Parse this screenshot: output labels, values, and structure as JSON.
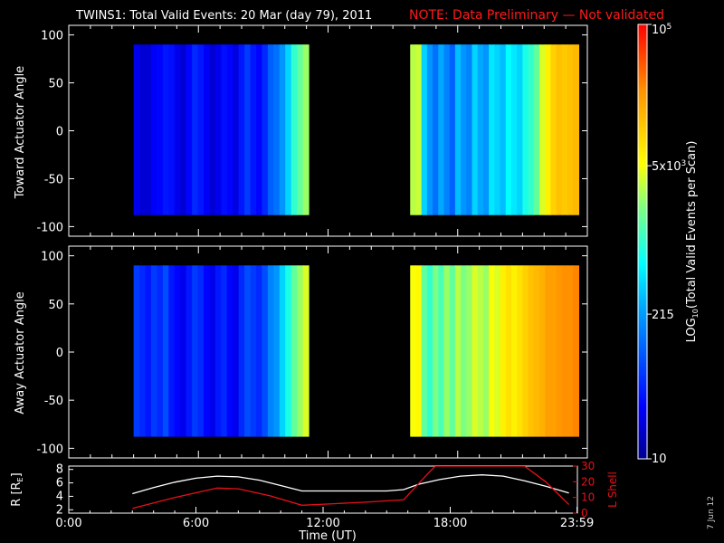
{
  "header": {
    "title": "TWINS1: Total Valid Events: 20 Mar (day  79), 2011",
    "note": "NOTE: Data Preliminary — Not validated"
  },
  "colors": {
    "background": "#000000",
    "note": "#ff1a1a",
    "r_line": "#ffffff",
    "lshell_line": "#e8101a",
    "panel_frame": "#ffffff"
  },
  "colorbar": {
    "label": "LOG10(Total Valid Events per Scan)",
    "label_main": "LOG",
    "label_sub": "10",
    "label_rest": "(Total Valid Events per Scan)",
    "colormap": "jet-like (dark blue → blue → cyan → green → yellow → orange → red)",
    "scale": "log",
    "ticks": [
      {
        "value": 10,
        "label": "10"
      },
      {
        "value": 215,
        "label": "215"
      },
      {
        "value": 5000,
        "label": "5x10",
        "exp": "3"
      },
      {
        "value": 100000,
        "label": "10",
        "exp": "5"
      }
    ],
    "range": [
      10,
      100000
    ]
  },
  "chart_data": [
    {
      "type": "heatmap",
      "ylabel": "Toward Actuator Angle",
      "ylim": [
        -110,
        110
      ],
      "yticks": [
        100,
        50,
        0,
        -50,
        -100
      ],
      "x_unit": "hours UT",
      "data_segments": [
        {
          "start_hour": 3.0,
          "end_hour": 11.1,
          "ymin": -88,
          "ymax": 90
        },
        {
          "start_hour": 15.8,
          "end_hour": 23.6,
          "ymin": -88,
          "ymax": 90
        }
      ],
      "column_level_log10": [
        1.4,
        1.3,
        1.3,
        1.45,
        1.5,
        1.6,
        1.55,
        1.4,
        1.3,
        1.5,
        1.7,
        1.6,
        1.45,
        1.3,
        1.4,
        1.55,
        1.5,
        1.35,
        1.6,
        1.8,
        1.6,
        1.5,
        1.7,
        2.0,
        2.1,
        2.3,
        2.6,
        3.0,
        3.2,
        3.4,
        3.5,
        3.55,
        2.6,
        2.3,
        2.1,
        2.4,
        2.2,
        2.0,
        2.5,
        2.3,
        2.2,
        2.6,
        2.4,
        2.3,
        2.7,
        2.6,
        2.5,
        2.8,
        2.7,
        2.6,
        2.9,
        3.0,
        3.2,
        3.6,
        3.8,
        4.0,
        4.1,
        4.05,
        4.1,
        4.15
      ]
    },
    {
      "type": "heatmap",
      "ylabel": "Away Actuator Angle",
      "ylim": [
        -110,
        110
      ],
      "yticks": [
        100,
        50,
        0,
        -50,
        -100
      ],
      "x_unit": "hours UT",
      "data_segments": [
        {
          "start_hour": 3.0,
          "end_hour": 11.1,
          "ymin": -88,
          "ymax": 90
        },
        {
          "start_hour": 15.8,
          "end_hour": 23.6,
          "ymin": -88,
          "ymax": 90
        }
      ],
      "column_level_log10": [
        1.8,
        1.7,
        1.6,
        1.8,
        1.7,
        1.9,
        1.6,
        1.5,
        1.4,
        1.6,
        1.8,
        1.7,
        1.5,
        1.4,
        1.6,
        1.7,
        1.5,
        1.4,
        1.7,
        1.9,
        1.8,
        1.7,
        1.9,
        2.2,
        2.3,
        2.6,
        2.9,
        3.2,
        3.4,
        3.6,
        3.7,
        3.75,
        3.2,
        3.0,
        3.3,
        3.1,
        3.4,
        3.2,
        3.5,
        3.3,
        3.4,
        3.6,
        3.5,
        3.4,
        3.7,
        3.6,
        3.8,
        3.9,
        3.8,
        3.9,
        4.0,
        4.1,
        4.15,
        4.2,
        4.3,
        4.3,
        4.35,
        4.4,
        4.4,
        4.45
      ]
    },
    {
      "type": "line",
      "ylabel_left": "R [RE]",
      "ylabel_right": "L Shell",
      "xlabel": "Time (UT)",
      "xlim": [
        0,
        24
      ],
      "xticks": [
        {
          "hour": 0,
          "label": "0:00"
        },
        {
          "hour": 6,
          "label": "6:00"
        },
        {
          "hour": 12,
          "label": "12:00"
        },
        {
          "hour": 18,
          "label": "18:00"
        },
        {
          "hour": 23.983,
          "label": "23:59"
        }
      ],
      "ylim_left": [
        1.5,
        8.5
      ],
      "yticks_left": [
        2,
        4,
        6,
        8
      ],
      "ylim_right": [
        0,
        30
      ],
      "yticks_right": [
        0,
        10,
        20,
        30
      ],
      "series": [
        {
          "name": "R",
          "axis": "left",
          "x": [
            3.0,
            4.0,
            5.0,
            6.0,
            7.0,
            8.0,
            9.0,
            10.0,
            11.0,
            12.0,
            13.0,
            14.0,
            15.0,
            15.8,
            16.5,
            17.5,
            18.5,
            19.5,
            20.5,
            21.5,
            22.5,
            23.6
          ],
          "y": [
            4.4,
            5.3,
            6.1,
            6.7,
            7.0,
            6.9,
            6.4,
            5.6,
            4.8,
            4.8,
            4.8,
            4.8,
            4.8,
            5.0,
            5.8,
            6.5,
            7.0,
            7.2,
            7.0,
            6.3,
            5.5,
            4.5
          ]
        },
        {
          "name": "L Shell",
          "axis": "right",
          "x": [
            3.0,
            5.0,
            7.0,
            8.0,
            9.5,
            11.0,
            12.5,
            14.0,
            15.8,
            17.0,
            17.3,
            21.5,
            22.5,
            23.6
          ],
          "y": [
            3.0,
            10.0,
            16.0,
            15.5,
            11.0,
            5.0,
            6.0,
            7.0,
            8.5,
            26.0,
            30.0,
            30.0,
            20.0,
            5.5
          ]
        }
      ]
    }
  ],
  "footer": {
    "date_stamp": "7 Jun 12"
  }
}
